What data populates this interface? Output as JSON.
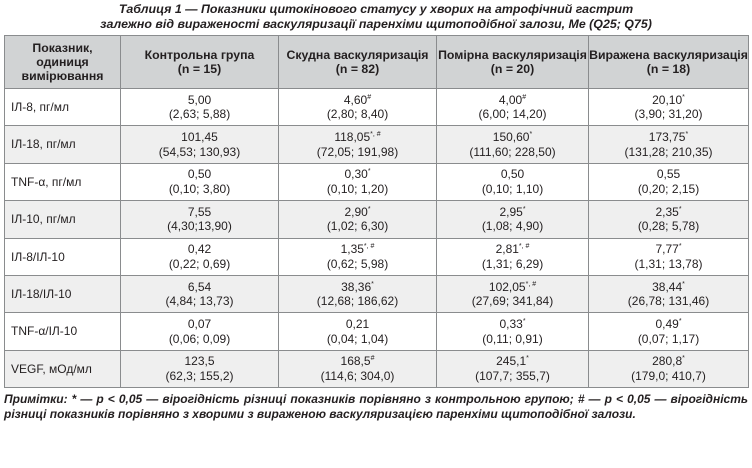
{
  "caption": {
    "line1": "Таблиця 1 — Показники цитокінового статусу у хворих на атрофічний гастрит",
    "line2": "залежно від вираженості васкуляризації паренхіми щитоподібної залози, Me (Q25; Q75)"
  },
  "table": {
    "headers": [
      {
        "label": "Показник, одиниця вимірювання",
        "sub": ""
      },
      {
        "label": "Контрольна група",
        "sub": "(n = 15)"
      },
      {
        "label": "Скудна васкуляризація",
        "sub": "(n = 82)"
      },
      {
        "label": "Помірна васкуляризація",
        "sub": "(n = 20)"
      },
      {
        "label": "Виражена васкуляризація",
        "sub": "(n = 18)"
      }
    ],
    "rows": [
      {
        "param": "ІЛ-8, пг/мл",
        "cells": [
          {
            "median": "5,00",
            "mark": "",
            "range": "(2,63; 5,88)"
          },
          {
            "median": "4,60",
            "mark": "#",
            "range": "(2,80; 8,40)"
          },
          {
            "median": "4,00",
            "mark": "#",
            "range": "(6,00; 14,20)"
          },
          {
            "median": "20,10",
            "mark": "*",
            "range": "(3,90; 31,20)"
          }
        ]
      },
      {
        "param": "ІЛ-18, пг/мл",
        "cells": [
          {
            "median": "101,45",
            "mark": "",
            "range": "(54,53; 130,93)"
          },
          {
            "median": "118,05",
            "mark": "*, #",
            "range": "(72,05; 191,98)"
          },
          {
            "median": "150,60",
            "mark": "*",
            "range": "(111,60; 228,50)"
          },
          {
            "median": "173,75",
            "mark": "*",
            "range": "(131,28; 210,35)"
          }
        ]
      },
      {
        "param": "TNF-α, пг/мл",
        "cells": [
          {
            "median": "0,50",
            "mark": "",
            "range": "(0,10; 3,80)"
          },
          {
            "median": "0,30",
            "mark": "*",
            "range": "(0,10; 1,20)"
          },
          {
            "median": "0,50",
            "mark": "",
            "range": "(0,10; 1,10)"
          },
          {
            "median": "0,55",
            "mark": "",
            "range": "(0,20; 2,15)"
          }
        ]
      },
      {
        "param": "ІЛ-10, пг/мл",
        "cells": [
          {
            "median": "7,55",
            "mark": "",
            "range": "(4,30;13,90)"
          },
          {
            "median": "2,90",
            "mark": "*",
            "range": "(1,02; 6,30)"
          },
          {
            "median": "2,95",
            "mark": "*",
            "range": "(1,08; 4,90)"
          },
          {
            "median": "2,35",
            "mark": "*",
            "range": "(0,28; 5,78)"
          }
        ]
      },
      {
        "param": "ІЛ-8/ІЛ-10",
        "cells": [
          {
            "median": "0,42",
            "mark": "",
            "range": "(0,22; 0,69)"
          },
          {
            "median": "1,35",
            "mark": "*, #",
            "range": "(0,62; 5,98)"
          },
          {
            "median": "2,81",
            "mark": "*, #",
            "range": "(1,31; 6,29)"
          },
          {
            "median": "7,77",
            "mark": "*",
            "range": "(1,31; 13,78)"
          }
        ]
      },
      {
        "param": "ІЛ-18/ІЛ-10",
        "cells": [
          {
            "median": "6,54",
            "mark": "",
            "range": "(4,84; 13,73)"
          },
          {
            "median": "38,36",
            "mark": "*",
            "range": "(12,68; 186,62)"
          },
          {
            "median": "102,05",
            "mark": "*, #",
            "range": "(27,69; 341,84)"
          },
          {
            "median": "38,44",
            "mark": "*",
            "range": "(26,78; 131,46)"
          }
        ]
      },
      {
        "param": "TNF-α/ІЛ-10",
        "cells": [
          {
            "median": "0,07",
            "mark": "",
            "range": "(0,06; 0,09)"
          },
          {
            "median": "0,21",
            "mark": "",
            "range": "(0,04; 1,04)"
          },
          {
            "median": "0,33",
            "mark": "*",
            "range": "(0,11; 0,91)"
          },
          {
            "median": "0,49",
            "mark": "*",
            "range": "(0,07; 1,17)"
          }
        ]
      },
      {
        "param": "VEGF, мОд/мл",
        "cells": [
          {
            "median": "123,5",
            "mark": "",
            "range": "(62,3; 155,2)"
          },
          {
            "median": "168,5",
            "mark": "#",
            "range": "(114,6; 304,0)"
          },
          {
            "median": "245,1",
            "mark": "*",
            "range": "(107,7; 355,7)"
          },
          {
            "median": "280,8",
            "mark": "*",
            "range": "(179,0; 410,7)"
          }
        ]
      }
    ]
  },
  "notes": "Примітки: * — р < 0,05 — вірогідність різниці показників порівняно з контрольною групою; # — р < 0,05 — вірогідність різниці показників порівняно з хворими з вираженою васкуляризацією паренхіми щитоподібної залози."
}
